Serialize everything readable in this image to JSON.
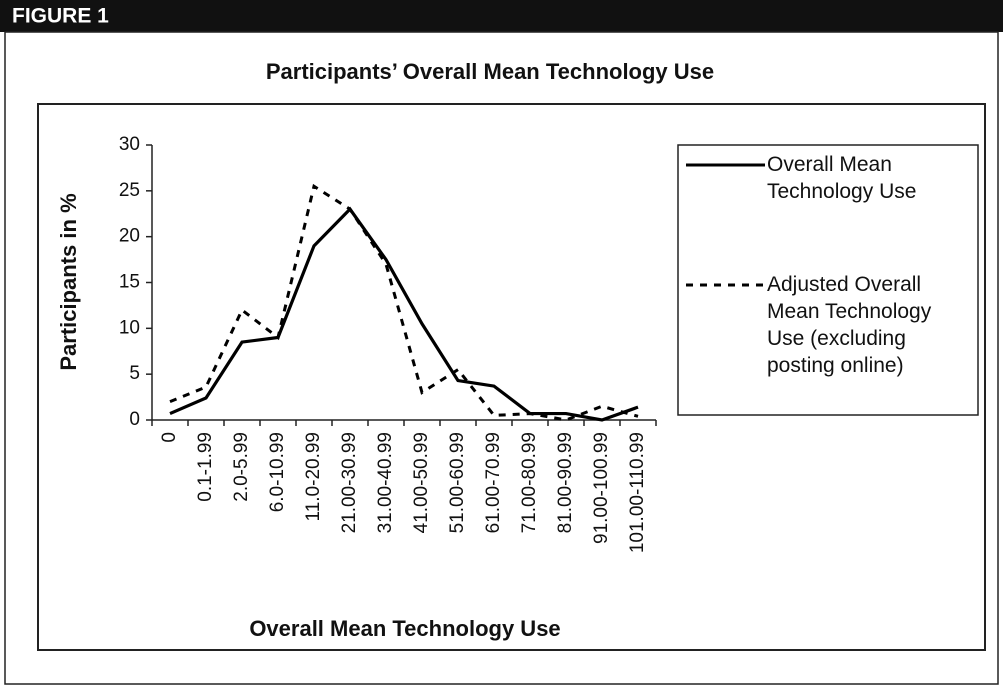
{
  "chart_data": {
    "type": "line",
    "label": "FIGURE 1",
    "title": "Participants’ Overall Mean Technology Use",
    "x_label": "Overall Mean Technology Use",
    "y_label": "Participants in %",
    "categories": [
      "0",
      "0.1-1.99",
      "2.0-5.99",
      "6.0-10.99",
      "11.0-20.99",
      "21.00-30.99",
      "31.00-40.99",
      "41.00-50.99",
      "51.00-60.99",
      "61.00-70.99",
      "71.00-80.99",
      "81.00-90.99",
      "91.00-100.99",
      "101.00-110.99"
    ],
    "series": [
      {
        "name": "Overall Mean Technology Use",
        "color": "#000000",
        "line_style": "solid",
        "values": [
          0.7,
          2.4,
          8.5,
          9,
          19,
          23,
          17.5,
          10.5,
          4.3,
          3.7,
          0.7,
          0.7,
          0,
          1.4
        ]
      },
      {
        "name": "Adjusted Overall Mean Technology Use (excluding posting online)",
        "color": "#000000",
        "line_style": "dashed",
        "values": [
          2,
          3.6,
          12,
          9,
          25.5,
          23,
          17,
          3,
          5.5,
          0.5,
          0.7,
          0,
          1.5,
          0.4
        ]
      }
    ],
    "ylim": [
      0,
      30
    ],
    "yticks": [
      0,
      5,
      10,
      15,
      20,
      25,
      30
    ],
    "grid": false,
    "legend": "right"
  }
}
